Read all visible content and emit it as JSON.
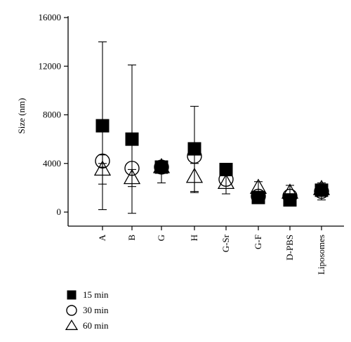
{
  "chart_data": {
    "type": "scatter",
    "ylabel": "Size (nm)",
    "xlabel": "",
    "ylim": [
      0,
      16000
    ],
    "yticks": [
      0,
      4000,
      8000,
      12000,
      16000
    ],
    "ytick_labels": [
      "0",
      "4000",
      "8000",
      "12000",
      "16000"
    ],
    "categories": [
      "A",
      "B",
      "G",
      "H",
      "G-Sr",
      "G-F",
      "D-PBS",
      "Liposomes"
    ],
    "legend_position": "bottom-left",
    "series": [
      {
        "name": "15 min",
        "marker": "filled-square",
        "values": [
          7100,
          6000,
          3700,
          5200,
          3500,
          1200,
          1000,
          1800
        ],
        "err_low": [
          6900,
          6100,
          0,
          3500,
          0,
          0,
          0,
          0
        ],
        "err_high": [
          6900,
          6100,
          0,
          3500,
          0,
          0,
          0,
          0
        ]
      },
      {
        "name": "30 min",
        "marker": "open-circle",
        "values": [
          4200,
          3600,
          3700,
          4600,
          2700,
          1300,
          1300,
          1700
        ],
        "err_low": [
          500,
          0,
          0,
          0,
          0,
          0,
          0,
          0
        ],
        "err_high": [
          500,
          0,
          0,
          0,
          0,
          0,
          0,
          0
        ]
      },
      {
        "name": "60 min",
        "marker": "open-triangle",
        "values": [
          3500,
          2800,
          3700,
          2900,
          2400,
          2000,
          1600,
          1900
        ],
        "err_low": [
          1200,
          700,
          1300,
          1300,
          900,
          800,
          700,
          900
        ],
        "err_high": [
          500,
          700,
          500,
          1100,
          700,
          500,
          600,
          500
        ]
      }
    ]
  }
}
